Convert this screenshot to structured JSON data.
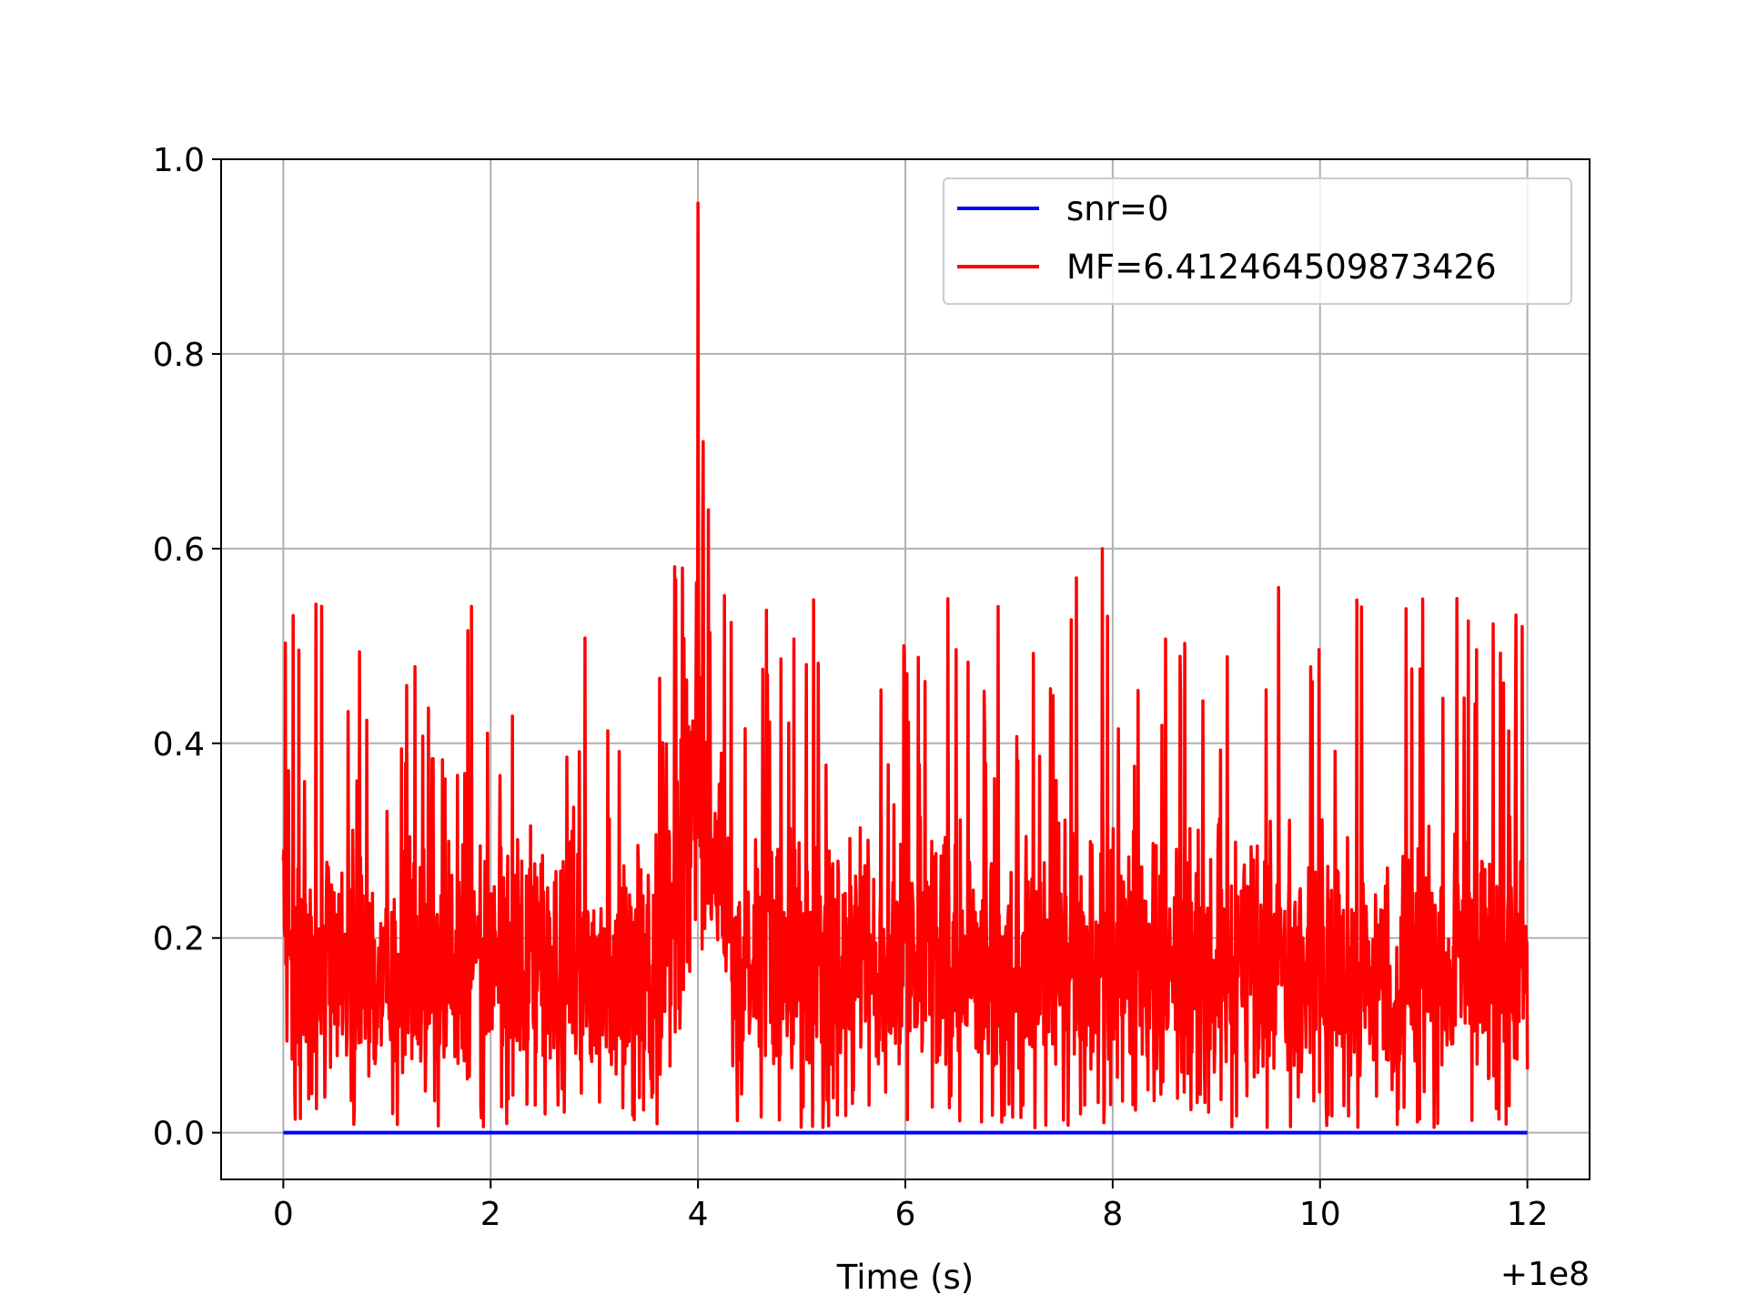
{
  "chart_data": {
    "type": "line",
    "title": "",
    "xlabel": "Time (s)",
    "ylabel": "",
    "x_offset_label": "+1e8",
    "xlim": [
      -0.6,
      12.6
    ],
    "ylim": [
      -0.048,
      1.0
    ],
    "xticks": [
      0,
      2,
      4,
      6,
      8,
      10,
      12
    ],
    "xtick_labels": [
      "0",
      "2",
      "4",
      "6",
      "8",
      "10",
      "12"
    ],
    "yticks": [
      0.0,
      0.2,
      0.4,
      0.6,
      0.8,
      1.0
    ],
    "ytick_labels": [
      "0.0",
      "0.2",
      "0.4",
      "0.6",
      "0.8",
      "1.0"
    ],
    "grid": true,
    "legend_position": "upper-right",
    "series": [
      {
        "name": "snr=0",
        "color": "#0000ff",
        "x": [
          0,
          12
        ],
        "y": [
          0.0,
          0.0
        ]
      },
      {
        "name": "MF=6.412464509873426",
        "color": "#ff0000",
        "x_range": [
          0,
          12
        ],
        "noise_band": [
          0.05,
          0.3
        ],
        "typical_max": 0.55,
        "peak": {
          "x": 4.0,
          "y": 0.955
        },
        "notable_peaks": [
          {
            "x": 3.85,
            "y": 0.58
          },
          {
            "x": 4.05,
            "y": 0.71
          },
          {
            "x": 4.1,
            "y": 0.64
          },
          {
            "x": 7.65,
            "y": 0.57
          },
          {
            "x": 7.9,
            "y": 0.6
          },
          {
            "x": 9.6,
            "y": 0.56
          },
          {
            "x": 10.4,
            "y": 0.54
          },
          {
            "x": 11.95,
            "y": 0.52
          }
        ]
      }
    ]
  }
}
